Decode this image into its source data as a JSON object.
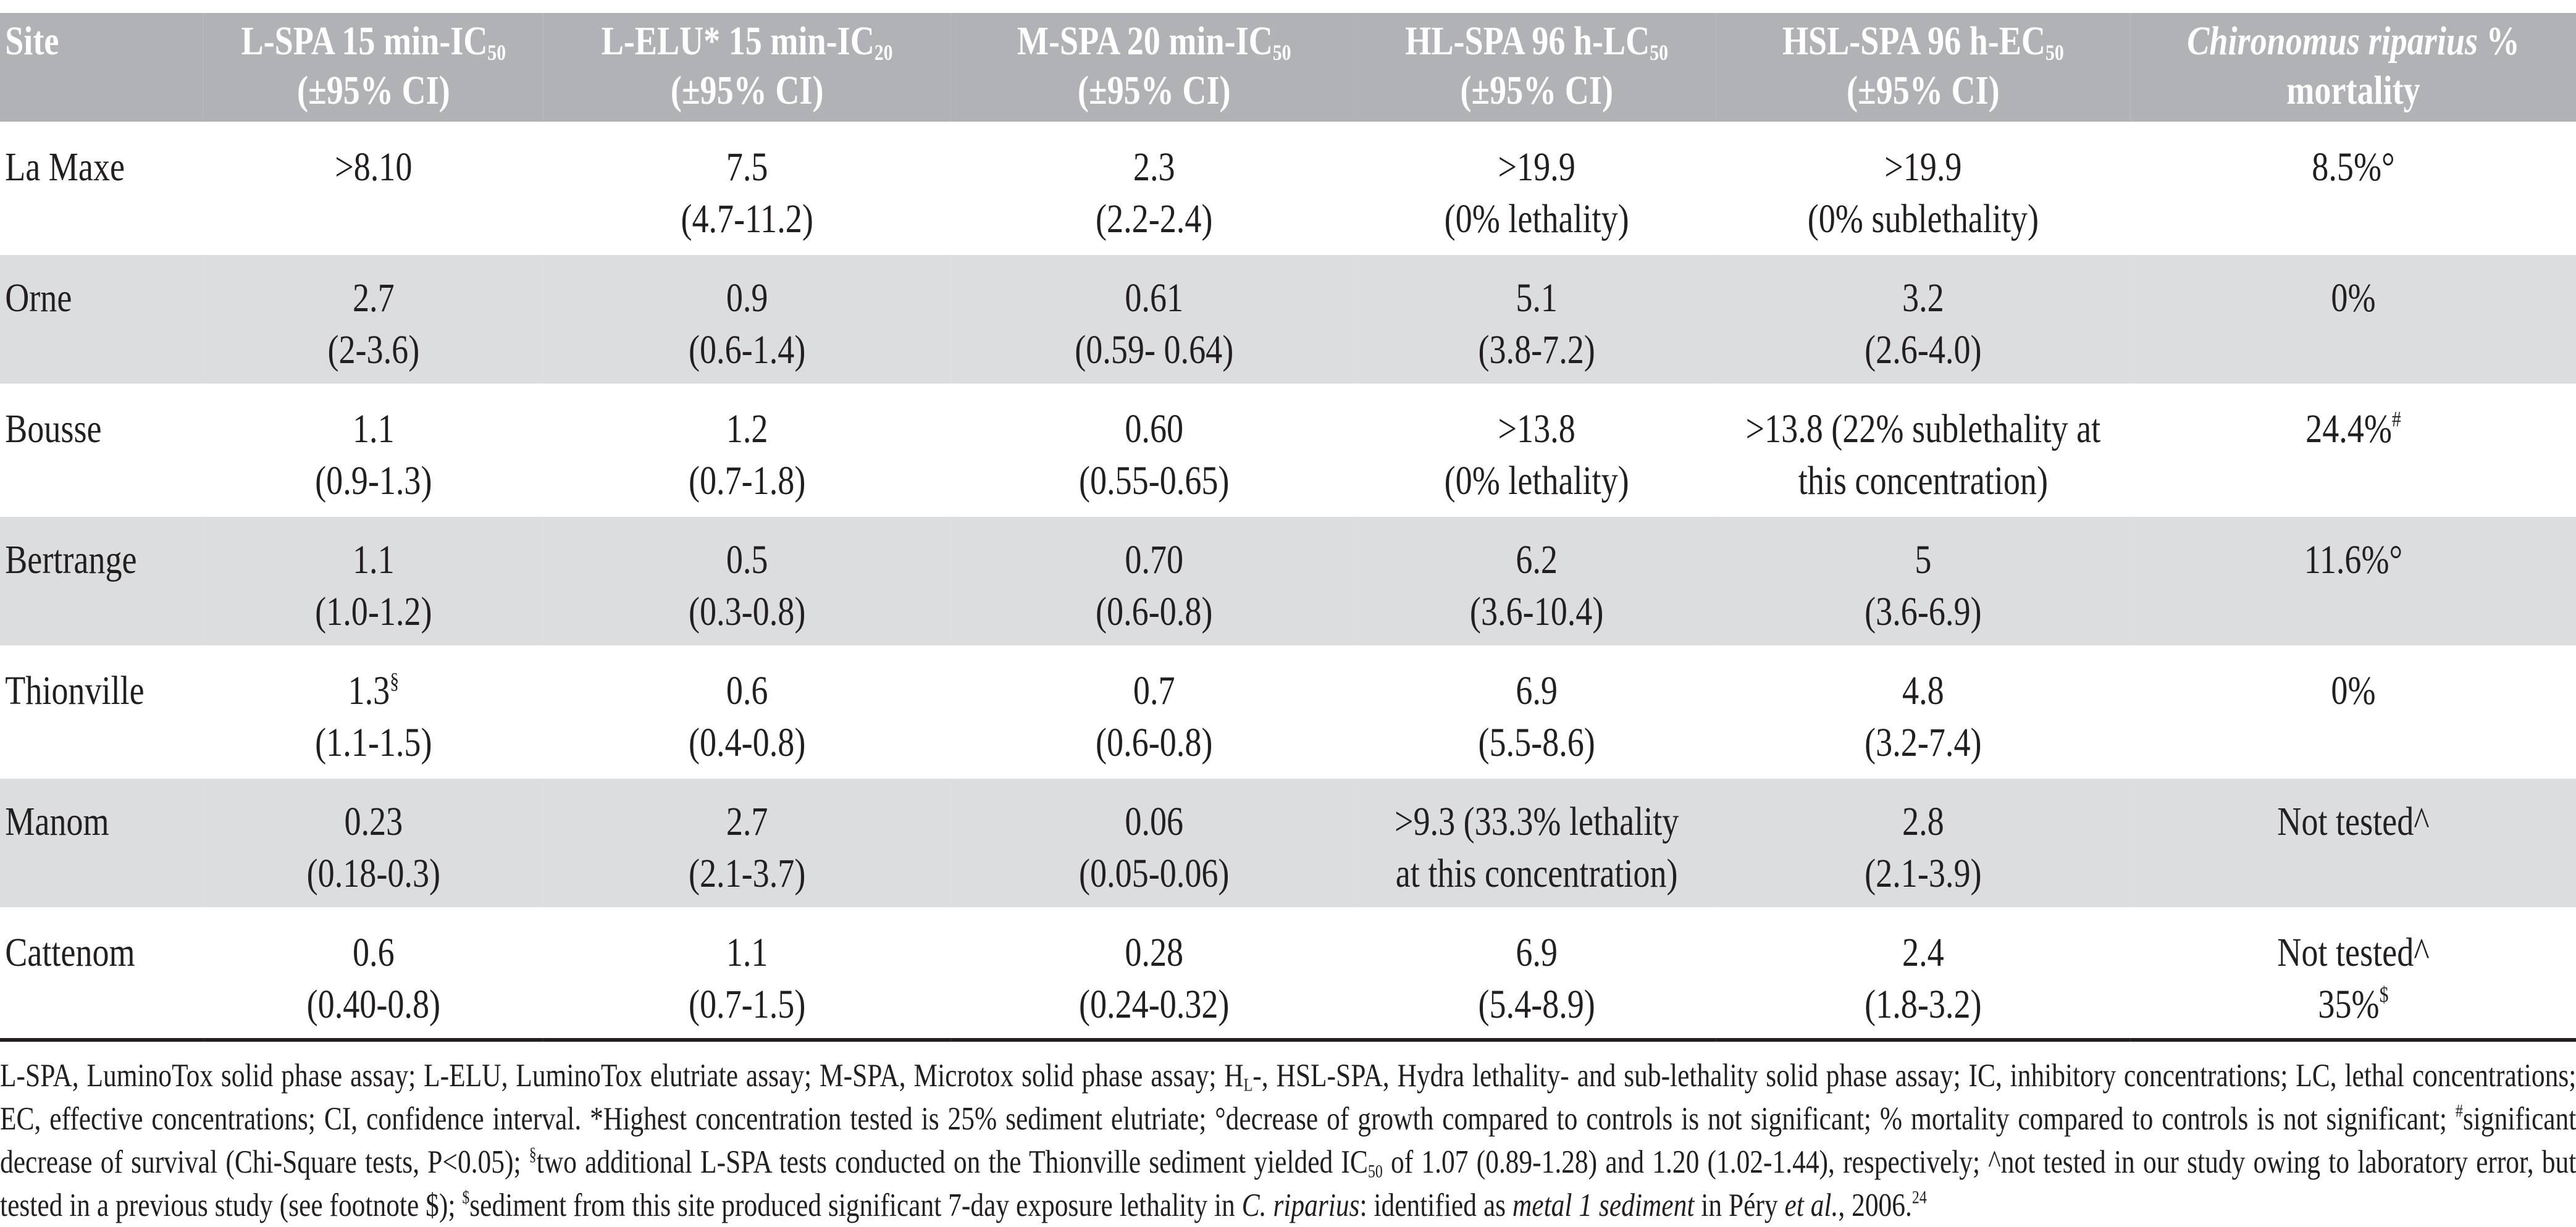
{
  "table": {
    "headers": [
      {
        "text": "Site",
        "sub": "",
        "line2": ""
      },
      {
        "text": "L-SPA 15 min-IC",
        "sub": "50",
        "line2": "(±95% CI)"
      },
      {
        "text": "L-ELU* 15 min-IC",
        "sub": "20",
        "line2": "(±95% CI)"
      },
      {
        "text": "M-SPA 20 min-IC",
        "sub": "50",
        "line2": "(±95% CI)"
      },
      {
        "text": "HL-SPA 96 h-LC",
        "sub": "50",
        "line2": "(±95% CI)"
      },
      {
        "text": "HSL-SPA 96 h-EC",
        "sub": "50",
        "line2": "(±95% CI)"
      },
      {
        "text": "Chironomus riparius",
        "italic": true,
        "after": " %",
        "line2": "mortality"
      }
    ],
    "rows": [
      {
        "site": "La Maxe",
        "cells": [
          {
            "main": ">8.10",
            "sup": "",
            "ci": ""
          },
          {
            "main": "7.5",
            "sup": "",
            "ci": "(4.7-11.2)"
          },
          {
            "main": "2.3",
            "sup": "",
            "ci": "(2.2-2.4)"
          },
          {
            "main": ">19.9",
            "sup": "",
            "ci": "(0% lethality)"
          },
          {
            "main": ">19.9",
            "sup": "",
            "ci": "(0% sublethality)"
          },
          {
            "main": "8.5%°",
            "sup": "",
            "ci": ""
          }
        ]
      },
      {
        "site": "Orne",
        "cells": [
          {
            "main": "2.7",
            "sup": "",
            "ci": "(2-3.6)"
          },
          {
            "main": "0.9",
            "sup": "",
            "ci": "(0.6-1.4)"
          },
          {
            "main": "0.61",
            "sup": "",
            "ci": "(0.59- 0.64)"
          },
          {
            "main": "5.1",
            "sup": "",
            "ci": "(3.8-7.2)"
          },
          {
            "main": "3.2",
            "sup": "",
            "ci": "(2.6-4.0)"
          },
          {
            "main": "0%",
            "sup": "",
            "ci": ""
          }
        ]
      },
      {
        "site": "Bousse",
        "cells": [
          {
            "main": "1.1",
            "sup": "",
            "ci": "(0.9-1.3)"
          },
          {
            "main": "1.2",
            "sup": "",
            "ci": "(0.7-1.8)"
          },
          {
            "main": "0.60",
            "sup": "",
            "ci": "(0.55-0.65)"
          },
          {
            "main": ">13.8",
            "sup": "",
            "ci": "(0% lethality)"
          },
          {
            "main": ">13.8 (22% sublethality at",
            "sup": "",
            "ci": "this concentration)"
          },
          {
            "main": "24.4%",
            "sup": "#",
            "ci": ""
          }
        ]
      },
      {
        "site": "Bertrange",
        "cells": [
          {
            "main": "1.1",
            "sup": "",
            "ci": "(1.0-1.2)"
          },
          {
            "main": "0.5",
            "sup": "",
            "ci": "(0.3-0.8)"
          },
          {
            "main": "0.70",
            "sup": "",
            "ci": "(0.6-0.8)"
          },
          {
            "main": "6.2",
            "sup": "",
            "ci": "(3.6-10.4)"
          },
          {
            "main": "5",
            "sup": "",
            "ci": "(3.6-6.9)"
          },
          {
            "main": "11.6%°",
            "sup": "",
            "ci": ""
          }
        ]
      },
      {
        "site": "Thionville",
        "cells": [
          {
            "main": "1.3",
            "sup": "§",
            "ci": "(1.1-1.5)"
          },
          {
            "main": "0.6",
            "sup": "",
            "ci": "(0.4-0.8)"
          },
          {
            "main": "0.7",
            "sup": "",
            "ci": "(0.6-0.8)"
          },
          {
            "main": "6.9",
            "sup": "",
            "ci": "(5.5-8.6)"
          },
          {
            "main": "4.8",
            "sup": "",
            "ci": "(3.2-7.4)"
          },
          {
            "main": "0%",
            "sup": "",
            "ci": ""
          }
        ]
      },
      {
        "site": "Manom",
        "cells": [
          {
            "main": "0.23",
            "sup": "",
            "ci": "(0.18-0.3)"
          },
          {
            "main": "2.7",
            "sup": "",
            "ci": "(2.1-3.7)"
          },
          {
            "main": "0.06",
            "sup": "",
            "ci": "(0.05-0.06)"
          },
          {
            "main": ">9.3 (33.3% lethality",
            "sup": "",
            "ci": "at this concentration)"
          },
          {
            "main": "2.8",
            "sup": "",
            "ci": "(2.1-3.9)"
          },
          {
            "main": "Not tested^",
            "sup": "",
            "ci": ""
          }
        ]
      },
      {
        "site": "Cattenom",
        "cells": [
          {
            "main": "0.6",
            "sup": "",
            "ci": "(0.40-0.8)"
          },
          {
            "main": "1.1",
            "sup": "",
            "ci": "(0.7-1.5)"
          },
          {
            "main": "0.28",
            "sup": "",
            "ci": "(0.24-0.32)"
          },
          {
            "main": "6.9",
            "sup": "",
            "ci": "(5.4-8.9)"
          },
          {
            "main": "2.4",
            "sup": "",
            "ci": "(1.8-3.2)"
          },
          {
            "main": "Not tested^",
            "sup": "",
            "ci": "35%",
            "ci_sup": "$"
          }
        ]
      }
    ]
  },
  "footnote": [
    {
      "t": "L-SPA, LuminoTox solid phase assay; L-ELU, LuminoTox elutriate assay; M-SPA, Microtox solid phase assay; H"
    },
    {
      "t": "L",
      "s": "sub"
    },
    {
      "t": "-, HSL-SPA, Hydra lethality- and sub-lethality solid phase assay; IC, inhibitory concentrations; LC, lethal concentrations; EC, effective concentrations; CI, confidence interval. *Highest concentration tested is 25% sediment elutriate; °decrease of growth compared to controls is not significant; % mortality compared to controls is not significant; "
    },
    {
      "t": "#",
      "s": "sup"
    },
    {
      "t": "significant decrease of survival (Chi-Square tests, P<0.05); "
    },
    {
      "t": "§",
      "s": "sup"
    },
    {
      "t": "two additional L-SPA tests conducted on the Thionville sediment yielded IC"
    },
    {
      "t": "50",
      "s": "sub"
    },
    {
      "t": " of 1.07 (0.89-1.28) and 1.20 (1.02-1.44), respectively; ^not tested in our study owing to laboratory error, but tested in a previous study (see footnote $); "
    },
    {
      "t": "$",
      "s": "sup"
    },
    {
      "t": "sediment from this site produced significant 7-day exposure lethality in "
    },
    {
      "t": "C. riparius",
      "s": "i"
    },
    {
      "t": ": identified as "
    },
    {
      "t": "metal 1 sediment",
      "s": "i"
    },
    {
      "t": " in Péry "
    },
    {
      "t": "et al.",
      "s": "i"
    },
    {
      "t": ", 2006."
    },
    {
      "t": "24",
      "s": "sup"
    }
  ]
}
